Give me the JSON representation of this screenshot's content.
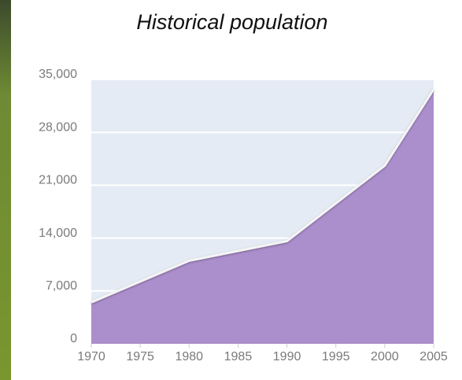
{
  "chart_data": {
    "type": "area",
    "title": "Historical population",
    "x": [
      1970,
      1980,
      1990,
      2000,
      2005
    ],
    "values": [
      5500,
      11000,
      13600,
      23600,
      33700
    ],
    "color": "#ab8ecc",
    "xlim": [
      1970,
      2005
    ],
    "xticks": [
      1970,
      1975,
      1980,
      1985,
      1990,
      1995,
      2000,
      2005
    ],
    "ylim": [
      0,
      35000
    ],
    "yticks": [
      0,
      {
        "value": 7000,
        "label": "7,000"
      },
      {
        "value": 14000,
        "label": "14,000"
      },
      {
        "value": 21000,
        "label": "21,000"
      },
      {
        "value": 28000,
        "label": "28,000"
      },
      {
        "value": 35000,
        "label": "35,000"
      }
    ],
    "grid": true
  }
}
